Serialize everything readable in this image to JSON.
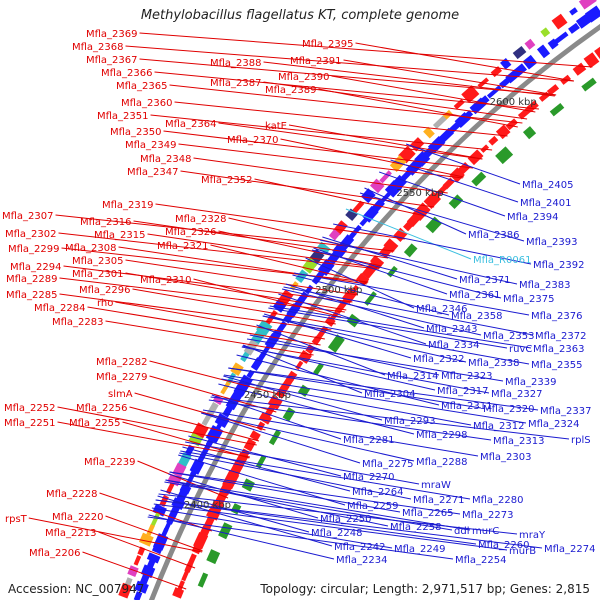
{
  "title": "Methylobacillus flagellatus KT, complete genome",
  "footer": {
    "accession": "Accession: NC_007947",
    "summary": "Topology: circular; Length: 2,971,517 bp; Genes: 2,815"
  },
  "colors": {
    "left_label": "#e00000",
    "right_label": "#1a1ad0",
    "rna_label": "#3bbfe0",
    "backbone": "#8a8a8a",
    "forward_gene": "#ff1a1a",
    "reverse_gene": "#1a1aff",
    "gc_marker": "#2a9a2a"
  },
  "ticks": [
    {
      "label": "2400 kbp"
    },
    {
      "label": "2450 kbp"
    },
    {
      "label": "2500 kbp"
    },
    {
      "label": "2550 kbp"
    },
    {
      "label": "2600 kbp"
    }
  ],
  "left_labels": [
    {
      "text": "Mfla_2369"
    },
    {
      "text": "Mfla_2368"
    },
    {
      "text": "Mfla_2367"
    },
    {
      "text": "Mfla_2366"
    },
    {
      "text": "Mfla_2365"
    },
    {
      "text": "Mfla_2360"
    },
    {
      "text": "Mfla_2351"
    },
    {
      "text": "Mfla_2364"
    },
    {
      "text": "Mfla_2350"
    },
    {
      "text": "Mfla_2370"
    },
    {
      "text": "Mfla_2349"
    },
    {
      "text": "Mfla_2348"
    },
    {
      "text": "Mfla_2347"
    },
    {
      "text": "Mfla_2352"
    },
    {
      "text": "Mfla_2395"
    },
    {
      "text": "Mfla_2388"
    },
    {
      "text": "Mfla_2391"
    },
    {
      "text": "Mfla_2390"
    },
    {
      "text": "Mfla_2387"
    },
    {
      "text": "Mfla_2389"
    },
    {
      "text": "katE"
    },
    {
      "text": "Mfla_2319"
    },
    {
      "text": "Mfla_2307"
    },
    {
      "text": "Mfla_2316"
    },
    {
      "text": "Mfla_2328"
    },
    {
      "text": "Mfla_2315"
    },
    {
      "text": "Mfla_2326"
    },
    {
      "text": "Mfla_2302"
    },
    {
      "text": "Mfla_2308"
    },
    {
      "text": "Mfla_2321"
    },
    {
      "text": "Mfla_2299"
    },
    {
      "text": "Mfla_2305"
    },
    {
      "text": "Mfla_2294"
    },
    {
      "text": "Mfla_2301"
    },
    {
      "text": "Mfla_2310"
    },
    {
      "text": "Mfla_2289"
    },
    {
      "text": "Mfla_2296"
    },
    {
      "text": "Mfla_2285"
    },
    {
      "text": "rho"
    },
    {
      "text": "Mfla_2284"
    },
    {
      "text": "Mfla_2283"
    },
    {
      "text": "Mfla_2282"
    },
    {
      "text": "Mfla_2279"
    },
    {
      "text": "slmA"
    },
    {
      "text": "Mfla_2252"
    },
    {
      "text": "Mfla_2256"
    },
    {
      "text": "Mfla_2251"
    },
    {
      "text": "Mfla_2255"
    },
    {
      "text": "Mfla_2239"
    },
    {
      "text": "Mfla_2228"
    },
    {
      "text": "rpsT"
    },
    {
      "text": "Mfla_2220"
    },
    {
      "text": "Mfla_2213"
    },
    {
      "text": "Mfla_2206"
    }
  ],
  "right_labels": [
    {
      "text": "Mfla_2405"
    },
    {
      "text": "Mfla_2401"
    },
    {
      "text": "Mfla_2394"
    },
    {
      "text": "Mfla_2386"
    },
    {
      "text": "Mfla_2393"
    },
    {
      "text": "Mfla_R0061"
    },
    {
      "text": "Mfla_2392"
    },
    {
      "text": "Mfla_2371"
    },
    {
      "text": "Mfla_2383"
    },
    {
      "text": "Mfla_2361"
    },
    {
      "text": "Mfla_2375"
    },
    {
      "text": "Mfla_2346"
    },
    {
      "text": "Mfla_2358"
    },
    {
      "text": "Mfla_2376"
    },
    {
      "text": "Mfla_2343"
    },
    {
      "text": "Mfla_2353"
    },
    {
      "text": "Mfla_2372"
    },
    {
      "text": "Mfla_2334"
    },
    {
      "text": "ruvC"
    },
    {
      "text": "Mfla_2363"
    },
    {
      "text": "Mfla_2322"
    },
    {
      "text": "Mfla_2338"
    },
    {
      "text": "Mfla_2355"
    },
    {
      "text": "Mfla_2314"
    },
    {
      "text": "Mfla_2323"
    },
    {
      "text": "Mfla_2339"
    },
    {
      "text": "Mfla_2317"
    },
    {
      "text": "Mfla_2327"
    },
    {
      "text": "Mfla_2304"
    },
    {
      "text": "Mfla_2311"
    },
    {
      "text": "Mfla_2320"
    },
    {
      "text": "Mfla_2337"
    },
    {
      "text": "Mfla_2293"
    },
    {
      "text": "Mfla_2312"
    },
    {
      "text": "Mfla_2324"
    },
    {
      "text": "Mfla_2298"
    },
    {
      "text": "Mfla_2313"
    },
    {
      "text": "rplS"
    },
    {
      "text": "Mfla_2281"
    },
    {
      "text": "Mfla_2303"
    },
    {
      "text": "Mfla_2288"
    },
    {
      "text": "Mfla_2275"
    },
    {
      "text": "Mfla_2270"
    },
    {
      "text": "mraW"
    },
    {
      "text": "Mfla_2264"
    },
    {
      "text": "Mfla_2271"
    },
    {
      "text": "Mfla_2280"
    },
    {
      "text": "Mfla_2259"
    },
    {
      "text": "Mfla_2265"
    },
    {
      "text": "Mfla_2273"
    },
    {
      "text": "Mfla_2250"
    },
    {
      "text": "Mfla_2258"
    },
    {
      "text": "ddl"
    },
    {
      "text": "murC"
    },
    {
      "text": "mraY"
    },
    {
      "text": "Mfla_2248"
    },
    {
      "text": "Mfla_2260"
    },
    {
      "text": "murB"
    },
    {
      "text": "Mfla_2274"
    },
    {
      "text": "Mfla_2242"
    },
    {
      "text": "Mfla_2249"
    },
    {
      "text": "Mfla_2254"
    },
    {
      "text": "Mfla_2234"
    }
  ]
}
